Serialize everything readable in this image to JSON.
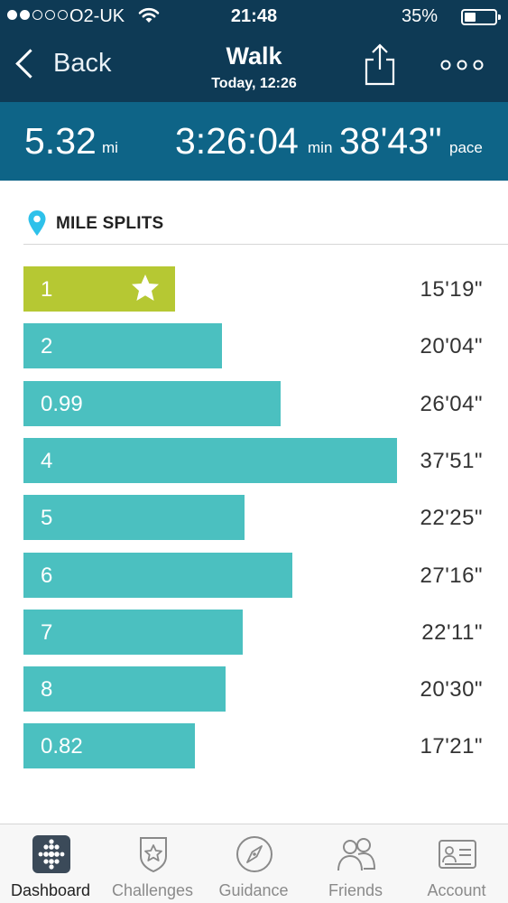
{
  "status_bar": {
    "carrier": "O2-UK",
    "time": "21:48",
    "battery": "35%",
    "signal_bars_filled": 2,
    "signal_bars_total": 5
  },
  "nav": {
    "back_label": "Back",
    "title": "Walk",
    "subtitle": "Today, 12:26",
    "icons": [
      "share-icon",
      "more-icon"
    ]
  },
  "summary": {
    "distance_value": "5.32",
    "distance_unit": "mi",
    "duration_value": "3:26:04",
    "duration_unit": "min",
    "pace_value": "38'43\"",
    "pace_unit": "pace"
  },
  "splits": {
    "title": "MILE SPLITS",
    "icon": "location-pin-icon",
    "rows": [
      {
        "label": "1",
        "time": "15'19\"",
        "minutes": 15.32,
        "best": true
      },
      {
        "label": "2",
        "time": "20'04\"",
        "minutes": 20.07,
        "best": false
      },
      {
        "label": "0.99",
        "time": "26'04\"",
        "minutes": 26.07,
        "best": false
      },
      {
        "label": "4",
        "time": "37'51\"",
        "minutes": 37.85,
        "best": false
      },
      {
        "label": "5",
        "time": "22'25\"",
        "minutes": 22.42,
        "best": false
      },
      {
        "label": "6",
        "time": "27'16\"",
        "minutes": 27.27,
        "best": false
      },
      {
        "label": "7",
        "time": "22'11\"",
        "minutes": 22.18,
        "best": false
      },
      {
        "label": "8",
        "time": "20'30\"",
        "minutes": 20.5,
        "best": false
      },
      {
        "label": "0.82",
        "time": "17'21\"",
        "minutes": 17.35,
        "best": false
      }
    ]
  },
  "tabs": [
    {
      "label": "Dashboard",
      "icon": "dashboard-icon",
      "active": true
    },
    {
      "label": "Challenges",
      "icon": "challenges-icon",
      "active": false
    },
    {
      "label": "Guidance",
      "icon": "compass-icon",
      "active": false
    },
    {
      "label": "Friends",
      "icon": "friends-icon",
      "active": false
    },
    {
      "label": "Account",
      "icon": "account-icon",
      "active": false
    }
  ],
  "colors": {
    "header": "#0e3a55",
    "summary": "#0e6487",
    "bar": "#4bc0c0",
    "best_bar": "#b6c833",
    "pin": "#2ec1ea"
  }
}
